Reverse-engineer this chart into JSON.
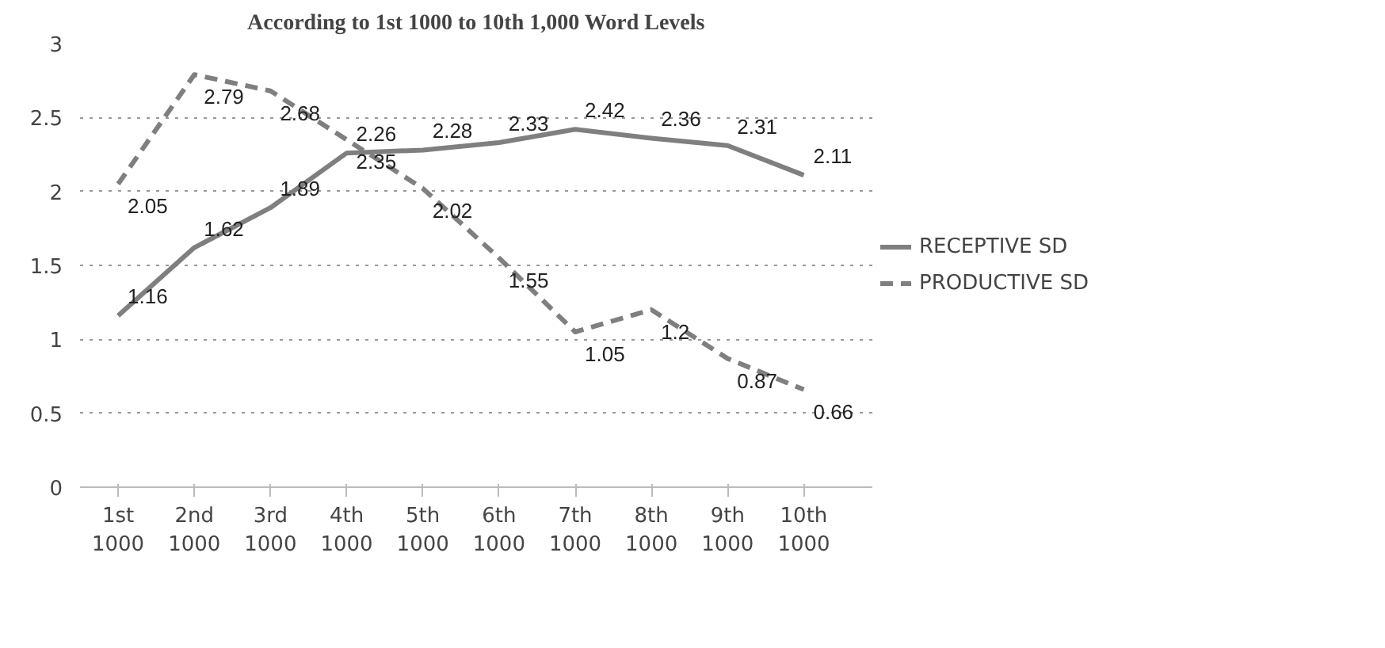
{
  "chart_data": {
    "type": "line",
    "title": "According to 1st 1000 to 10th 1,000 Word Levels",
    "categories": [
      "1st\n1000",
      "2nd\n1000",
      "3rd\n1000",
      "4th\n1000",
      "5th\n1000",
      "6th\n1000",
      "7th\n1000",
      "8th\n1000",
      "9th\n1000",
      "10th\n1000"
    ],
    "series": [
      {
        "name": "RECEPTIVE SD",
        "color": "#7f7f7f",
        "line_style": "solid",
        "values": [
          1.16,
          1.62,
          1.89,
          2.26,
          2.28,
          2.33,
          2.42,
          2.36,
          2.31,
          2.11
        ]
      },
      {
        "name": "PRODUCTIVE SD",
        "color": "#7f7f7f",
        "line_style": "dashed",
        "values": [
          2.05,
          2.79,
          2.68,
          2.35,
          2.02,
          1.55,
          1.05,
          1.2,
          0.87,
          0.66
        ]
      }
    ],
    "ylim": [
      0,
      3
    ],
    "yticks": [
      0,
      0.5,
      1,
      1.5,
      2,
      2.5,
      3
    ],
    "grid": "y",
    "legend": "right",
    "data_labels": true,
    "marker": "none"
  }
}
